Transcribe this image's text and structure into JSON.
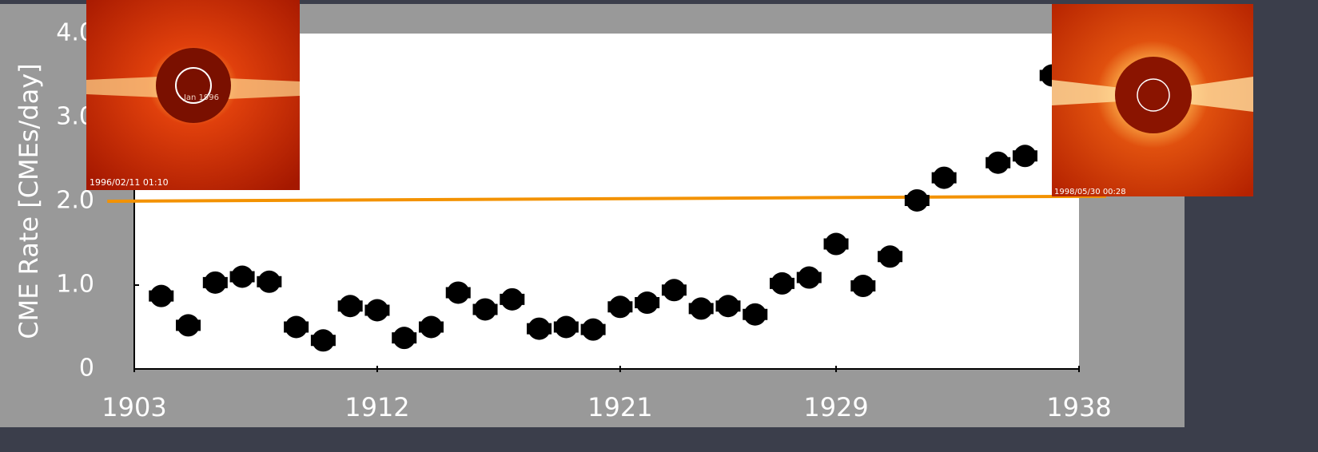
{
  "chart_data": {
    "type": "scatter",
    "y_label": "CME Rate [CMEs/day]",
    "x": [
      1904,
      1905,
      1906,
      1907,
      1908,
      1909,
      1910,
      1911,
      1912,
      1913,
      1914,
      1915,
      1916,
      1917,
      1918,
      1919,
      1920,
      1921,
      1922,
      1923,
      1924,
      1925,
      1926,
      1927,
      1928,
      1929,
      1930,
      1931,
      1932,
      1933,
      1935,
      1936,
      1937
    ],
    "values": [
      0.87,
      0.52,
      1.03,
      1.1,
      1.04,
      0.5,
      0.34,
      0.75,
      0.7,
      0.37,
      0.5,
      0.91,
      0.71,
      0.83,
      0.48,
      0.5,
      0.47,
      0.74,
      0.79,
      0.94,
      0.72,
      0.75,
      0.65,
      1.02,
      1.09,
      1.49,
      0.99,
      1.34,
      2.01,
      2.28,
      2.46,
      2.54,
      3.5
    ],
    "xerr": 0.4,
    "color": "#000000",
    "xlim": [
      1903,
      1938
    ],
    "ylim": [
      0,
      4
    ],
    "xticks": [
      1903,
      1912,
      1921,
      1929,
      1938
    ],
    "yticks": [
      0,
      {
        "value": 1,
        "label": "1.0"
      },
      {
        "value": 2,
        "label": "2.0"
      },
      {
        "value": 3,
        "label": "3.0"
      },
      {
        "value": 4,
        "label": "4.0"
      }
    ],
    "reference_line": {
      "x": [
        1902,
        1939
      ],
      "values": [
        2.0,
        2.06
      ],
      "color": "#f39200"
    }
  },
  "images": [
    {
      "timestamp": "1996/02/11 01:10",
      "label": "Jan 1996"
    },
    {
      "timestamp": "1998/05/30 00:28"
    }
  ]
}
